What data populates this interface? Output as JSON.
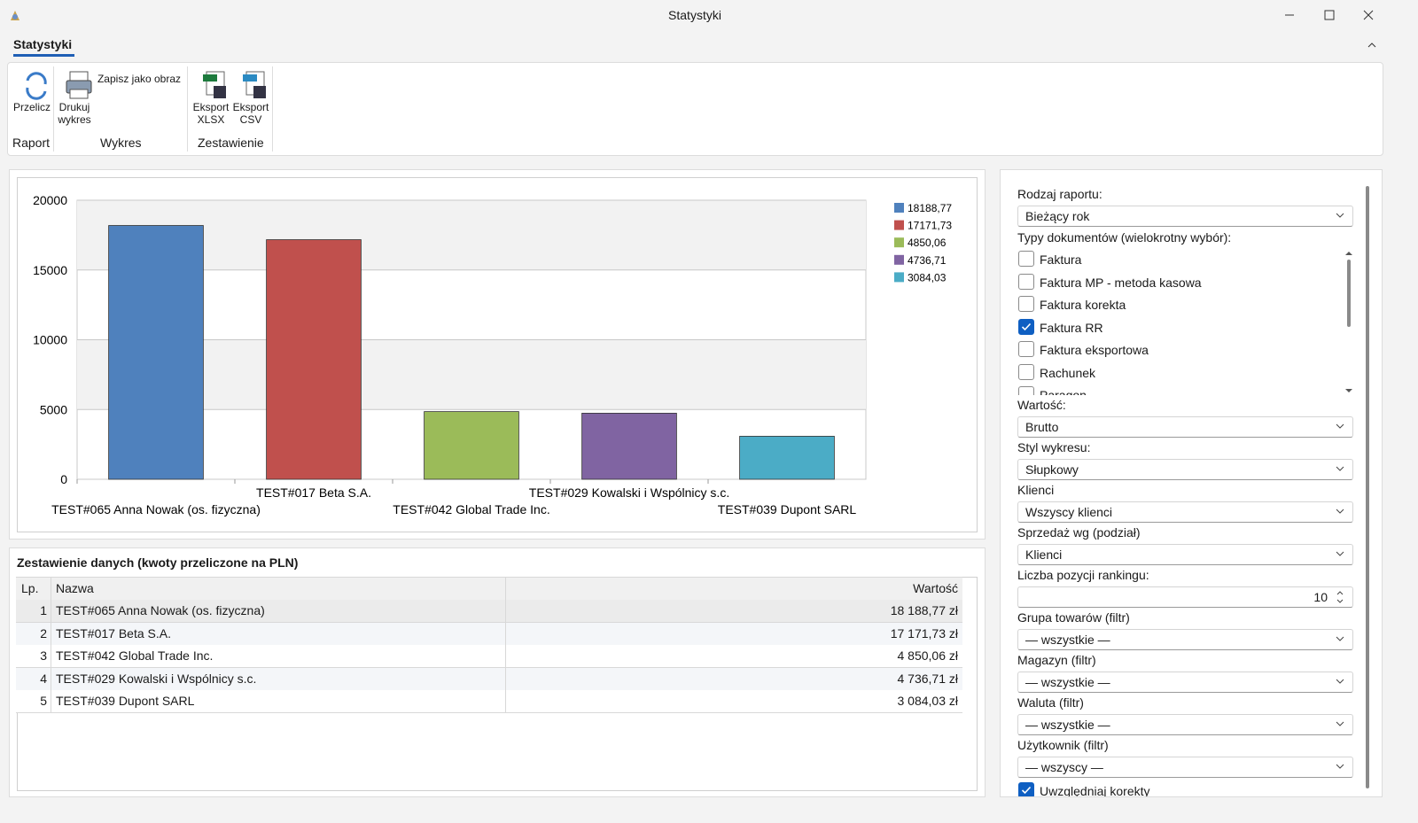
{
  "window": {
    "title": "Statystyki"
  },
  "ribbon": {
    "tab": "Statystyki",
    "buttons": [
      "Przelicz",
      "Drukuj wykres",
      "Zapisz jako obraz",
      "Eksport XLSX",
      "Eksport CSV"
    ],
    "groups": [
      "Raport",
      "Wykres",
      "Zestawienie"
    ]
  },
  "chart_data": {
    "type": "bar",
    "categories": [
      "TEST#065 Anna Nowak (os. fizyczna)",
      "TEST#017 Beta S.A.",
      "TEST#042 Global Trade Inc.",
      "TEST#029 Kowalski i Wspólnicy s.c.",
      "TEST#039 Dupont SARL"
    ],
    "values": [
      18188.77,
      17171.73,
      4850.06,
      4736.71,
      3084.03
    ],
    "value_labels": [
      "18188,77",
      "17171,73",
      "4850,06",
      "4736,71",
      "3084,03"
    ],
    "colors": [
      "#4f81bd",
      "#c0504d",
      "#9bbb59",
      "#8064a2",
      "#4bacc6"
    ],
    "ylim": [
      0,
      20000
    ],
    "yticks": [
      0,
      5000,
      10000,
      15000,
      20000
    ],
    "grid": true,
    "legend": "right"
  },
  "table": {
    "title": "Zestawienie danych (kwoty przeliczone na PLN)",
    "columns": [
      "Lp.",
      "Nazwa",
      "Wartość"
    ],
    "rows": [
      [
        "1",
        "TEST#065 Anna Nowak (os. fizyczna)",
        "18 188,77 zł"
      ],
      [
        "2",
        "TEST#017 Beta S.A.",
        "17 171,73 zł"
      ],
      [
        "3",
        "TEST#042 Global Trade Inc.",
        "4 850,06 zł"
      ],
      [
        "4",
        "TEST#029 Kowalski i Wspólnicy s.c.",
        "4 736,71 zł"
      ],
      [
        "5",
        "TEST#039 Dupont SARL",
        "3 084,03 zł"
      ]
    ]
  },
  "settings": {
    "report": {
      "label": "Rodzaj raportu:",
      "value": "Bieżący rok"
    },
    "doc_types_label": "Typy dokumentów (wielokrotny wybór):",
    "doc_types": [
      {
        "label": "Faktura",
        "checked": false
      },
      {
        "label": "Faktura MP - metoda kasowa",
        "checked": false
      },
      {
        "label": "Faktura korekta",
        "checked": false
      },
      {
        "label": "Faktura RR",
        "checked": true
      },
      {
        "label": "Faktura eksportowa",
        "checked": false
      },
      {
        "label": "Rachunek",
        "checked": false
      },
      {
        "label": "Paragon",
        "checked": false
      }
    ],
    "fields": [
      {
        "label": "Wartość:",
        "value": "Brutto"
      },
      {
        "label": "Styl wykresu:",
        "value": "Słupkowy"
      },
      {
        "label": "Klienci",
        "value": "Wszyscy klienci"
      },
      {
        "label": "Sprzedaż wg (podział)",
        "value": "Klienci"
      },
      {
        "label": "Liczba pozycji rankingu:",
        "value": 10
      },
      {
        "label": "Grupa towarów (filtr)",
        "value": "— wszystkie —"
      },
      {
        "label": "Magazyn (filtr)",
        "value": "— wszystkie —"
      },
      {
        "label": "Waluta (filtr)",
        "value": "— wszystkie —"
      },
      {
        "label": "Użytkownik (filtr)",
        "value": "— wszyscy —"
      }
    ],
    "last_checkbox": {
      "label": "Uwzględniaj korekty",
      "checked": true
    }
  }
}
